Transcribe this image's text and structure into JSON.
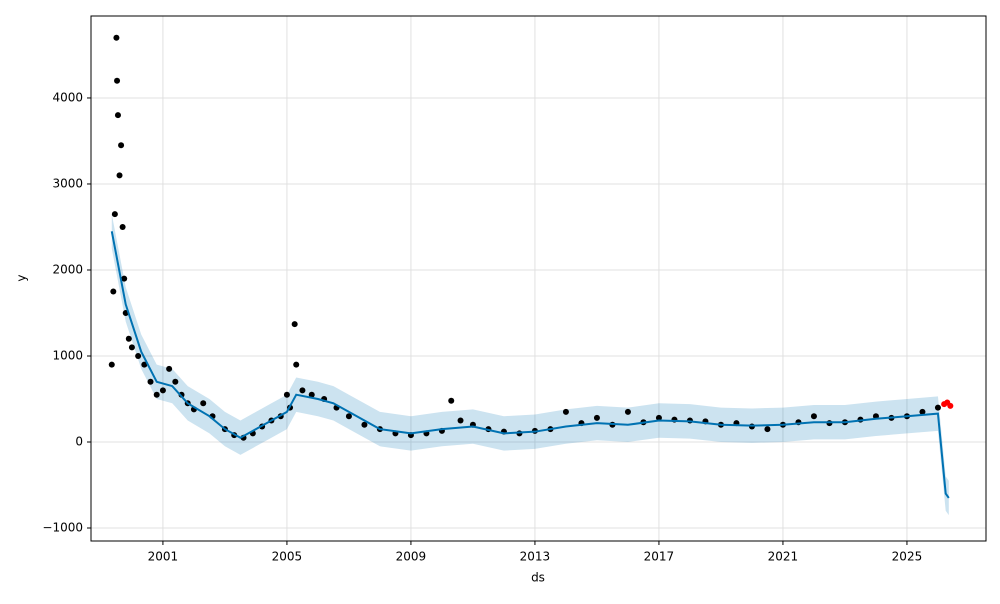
{
  "chart_data": {
    "type": "forecast",
    "x_label": "ds",
    "y_label": "y",
    "xlim": [
      1998.68,
      2027.55
    ],
    "ylim": [
      -1151,
      4953
    ],
    "xticks": [
      2001,
      2005,
      2009,
      2013,
      2017,
      2021,
      2025
    ],
    "yticks": [
      {
        "value": -1000,
        "label": "−1000"
      },
      0,
      1000,
      2000,
      3000,
      4000
    ],
    "grid": true,
    "observed": {
      "color": "#000000",
      "x": [
        1999.35,
        1999.4,
        1999.45,
        1999.5,
        1999.52,
        1999.55,
        1999.6,
        1999.65,
        1999.7,
        1999.75,
        1999.8,
        1999.9,
        2000.0,
        2000.2,
        2000.4,
        2000.6,
        2000.8,
        2001.0,
        2001.2,
        2001.4,
        2001.6,
        2001.8,
        2002.0,
        2002.3,
        2002.6,
        2003.0,
        2003.3,
        2003.6,
        2003.9,
        2004.2,
        2004.5,
        2004.8,
        2005.0,
        2005.1,
        2005.25,
        2005.3,
        2005.5,
        2005.8,
        2006.2,
        2006.6,
        2007.0,
        2007.5,
        2008.0,
        2008.5,
        2009.0,
        2009.5,
        2010.0,
        2010.3,
        2010.6,
        2011.0,
        2011.5,
        2012.0,
        2012.5,
        2013.0,
        2013.5,
        2014.0,
        2014.5,
        2015.0,
        2015.5,
        2016.0,
        2016.5,
        2017.0,
        2017.5,
        2018.0,
        2018.5,
        2019.0,
        2019.5,
        2020.0,
        2020.5,
        2021.0,
        2021.5,
        2022.0,
        2022.5,
        2023.0,
        2023.5,
        2024.0,
        2024.5,
        2025.0,
        2025.5,
        2026.0
      ],
      "y": [
        900,
        1750,
        2650,
        4700,
        4200,
        3800,
        3100,
        3450,
        2500,
        1900,
        1500,
        1200,
        1100,
        1000,
        900,
        700,
        550,
        600,
        850,
        700,
        550,
        450,
        380,
        450,
        300,
        150,
        80,
        50,
        100,
        180,
        250,
        300,
        550,
        400,
        1370,
        900,
        600,
        550,
        500,
        400,
        300,
        200,
        150,
        100,
        80,
        100,
        130,
        480,
        250,
        200,
        150,
        120,
        100,
        130,
        150,
        350,
        220,
        280,
        200,
        350,
        230,
        280,
        260,
        250,
        240,
        200,
        220,
        180,
        150,
        200,
        230,
        300,
        220,
        230,
        260,
        300,
        280,
        300,
        350,
        400
      ]
    },
    "new_points": {
      "color": "#ff0000",
      "x": [
        2026.2,
        2026.3,
        2026.4
      ],
      "y": [
        440,
        460,
        420
      ]
    },
    "forecast": {
      "color": "#0072b2",
      "x": [
        1999.35,
        1999.8,
        2000.3,
        2000.8,
        2001.3,
        2001.8,
        2002.5,
        2003.0,
        2003.5,
        2004.0,
        2004.5,
        2005.0,
        2005.3,
        2006.0,
        2006.5,
        2007.0,
        2008.0,
        2009.0,
        2010.0,
        2011.0,
        2012.0,
        2013.0,
        2014.0,
        2015.0,
        2016.0,
        2017.0,
        2018.0,
        2019.0,
        2020.0,
        2021.0,
        2022.0,
        2023.0,
        2024.0,
        2025.0,
        2026.0,
        2026.25,
        2026.35
      ],
      "yhat": [
        2450,
        1600,
        1050,
        700,
        650,
        450,
        300,
        150,
        50,
        150,
        250,
        350,
        550,
        500,
        450,
        350,
        150,
        100,
        150,
        180,
        100,
        120,
        180,
        220,
        200,
        250,
        240,
        200,
        190,
        200,
        230,
        230,
        270,
        300,
        330,
        -600,
        -650
      ],
      "lower": [
        2250,
        1400,
        850,
        500,
        450,
        250,
        100,
        -50,
        -150,
        -50,
        50,
        150,
        350,
        300,
        250,
        150,
        -50,
        -100,
        -50,
        -20,
        -100,
        -80,
        -20,
        20,
        0,
        50,
        40,
        0,
        -10,
        0,
        30,
        30,
        70,
        100,
        130,
        -800,
        -850
      ],
      "upper": [
        2650,
        1800,
        1250,
        900,
        850,
        650,
        500,
        350,
        250,
        350,
        450,
        550,
        750,
        700,
        650,
        550,
        350,
        300,
        350,
        380,
        300,
        320,
        380,
        420,
        400,
        450,
        440,
        400,
        390,
        400,
        430,
        430,
        470,
        500,
        530,
        -400,
        -450
      ]
    }
  }
}
